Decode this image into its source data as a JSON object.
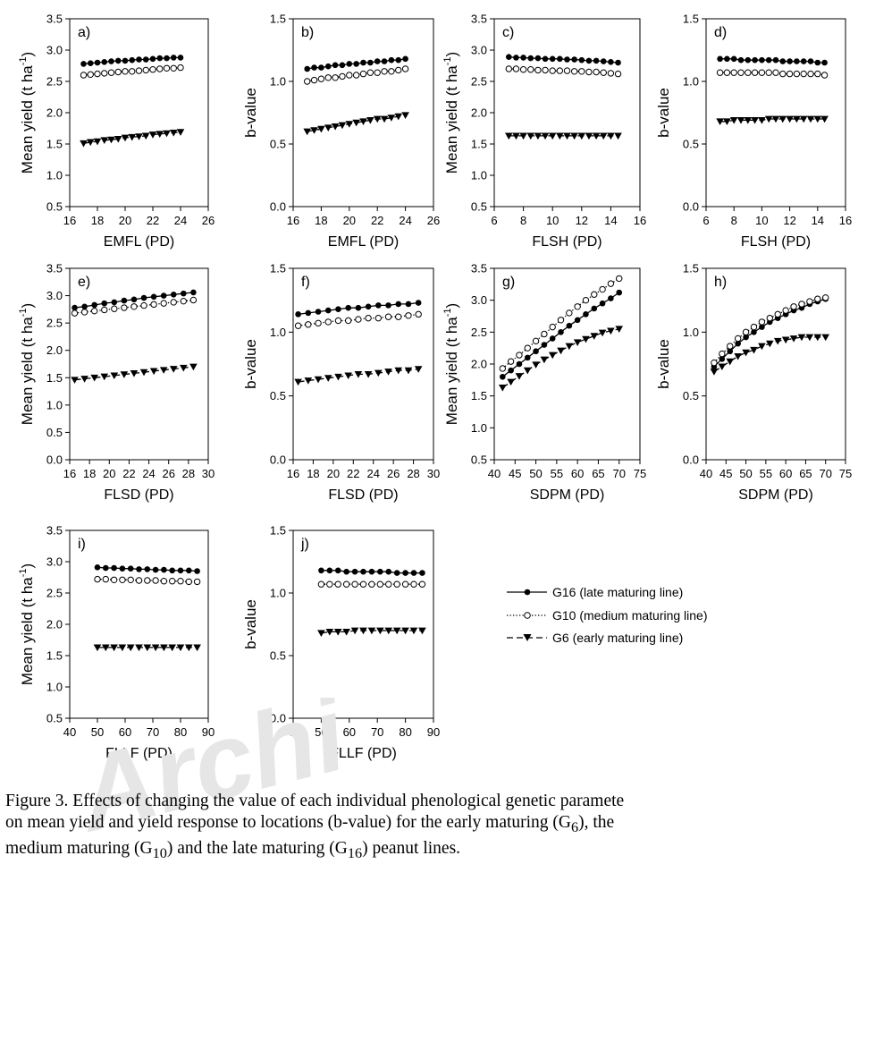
{
  "chart_data": [
    {
      "id": "a",
      "type": "line",
      "panel_label": "a)",
      "xlabel": "EMFL (PD)",
      "ylabel": "Mean yield (t ha-1)",
      "xlim": [
        16,
        26
      ],
      "ylim": [
        0.5,
        3.5
      ],
      "xticks": [
        16,
        18,
        20,
        22,
        24,
        26
      ],
      "yticks": [
        0.5,
        1.0,
        1.5,
        2.0,
        2.5,
        3.0,
        3.5
      ],
      "ytick_labels": [
        "0.5",
        "1.0",
        "1.5",
        "2.0",
        "2.5",
        "3.0",
        "3.5"
      ],
      "x": [
        17,
        17.5,
        18,
        18.5,
        19,
        19.5,
        20,
        20.5,
        21,
        21.5,
        22,
        22.5,
        23,
        23.5,
        24
      ],
      "series": [
        {
          "key": "G16",
          "values": [
            2.78,
            2.79,
            2.8,
            2.81,
            2.82,
            2.83,
            2.83,
            2.84,
            2.85,
            2.85,
            2.86,
            2.87,
            2.87,
            2.88,
            2.88
          ]
        },
        {
          "key": "G10",
          "values": [
            2.6,
            2.61,
            2.62,
            2.63,
            2.64,
            2.65,
            2.66,
            2.66,
            2.67,
            2.68,
            2.69,
            2.7,
            2.71,
            2.71,
            2.72
          ]
        },
        {
          "key": "G6",
          "values": [
            1.51,
            1.53,
            1.54,
            1.56,
            1.57,
            1.58,
            1.6,
            1.61,
            1.62,
            1.63,
            1.65,
            1.66,
            1.67,
            1.68,
            1.69
          ]
        }
      ]
    },
    {
      "id": "b",
      "type": "line",
      "panel_label": "b)",
      "xlabel": "EMFL (PD)",
      "ylabel": "b-value",
      "xlim": [
        16,
        26
      ],
      "ylim": [
        0,
        1.5
      ],
      "xticks": [
        16,
        18,
        20,
        22,
        24,
        26
      ],
      "yticks": [
        0,
        0.5,
        1.0,
        1.5
      ],
      "ytick_labels": [
        "0.0",
        "0.5",
        "1.0",
        "1.5"
      ],
      "x": [
        17,
        17.5,
        18,
        18.5,
        19,
        19.5,
        20,
        20.5,
        21,
        21.5,
        22,
        22.5,
        23,
        23.5,
        24
      ],
      "series": [
        {
          "key": "G16",
          "values": [
            1.1,
            1.11,
            1.11,
            1.12,
            1.13,
            1.13,
            1.14,
            1.14,
            1.15,
            1.15,
            1.16,
            1.16,
            1.17,
            1.17,
            1.18
          ]
        },
        {
          "key": "G10",
          "values": [
            1.0,
            1.01,
            1.02,
            1.03,
            1.03,
            1.04,
            1.05,
            1.05,
            1.06,
            1.07,
            1.07,
            1.08,
            1.08,
            1.09,
            1.1
          ]
        },
        {
          "key": "G6",
          "values": [
            0.6,
            0.61,
            0.62,
            0.63,
            0.64,
            0.65,
            0.66,
            0.67,
            0.68,
            0.69,
            0.7,
            0.7,
            0.71,
            0.72,
            0.73
          ]
        }
      ]
    },
    {
      "id": "c",
      "type": "line",
      "panel_label": "c)",
      "xlabel": "FLSH (PD)",
      "ylabel": "Mean yield (t ha-1)",
      "xlim": [
        6,
        16
      ],
      "ylim": [
        0.5,
        3.5
      ],
      "xticks": [
        6,
        8,
        10,
        12,
        14,
        16
      ],
      "yticks": [
        0.5,
        1.0,
        1.5,
        2.0,
        2.5,
        3.0,
        3.5
      ],
      "ytick_labels": [
        "0.5",
        "1.0",
        "1.5",
        "2.0",
        "2.5",
        "3.0",
        "3.5"
      ],
      "x": [
        7,
        7.5,
        8,
        8.5,
        9,
        9.5,
        10,
        10.5,
        11,
        11.5,
        12,
        12.5,
        13,
        13.5,
        14,
        14.5
      ],
      "series": [
        {
          "key": "G16",
          "values": [
            2.89,
            2.88,
            2.88,
            2.87,
            2.87,
            2.86,
            2.86,
            2.86,
            2.85,
            2.85,
            2.84,
            2.83,
            2.83,
            2.82,
            2.81,
            2.8
          ]
        },
        {
          "key": "G10",
          "values": [
            2.7,
            2.7,
            2.69,
            2.69,
            2.68,
            2.68,
            2.67,
            2.67,
            2.67,
            2.66,
            2.66,
            2.65,
            2.65,
            2.64,
            2.63,
            2.62
          ]
        },
        {
          "key": "G6",
          "values": [
            1.63,
            1.63,
            1.63,
            1.63,
            1.63,
            1.63,
            1.63,
            1.63,
            1.63,
            1.63,
            1.63,
            1.63,
            1.63,
            1.63,
            1.63,
            1.63
          ]
        }
      ]
    },
    {
      "id": "d",
      "type": "line",
      "panel_label": "d)",
      "xlabel": "FLSH (PD)",
      "ylabel": "b-value",
      "xlim": [
        6,
        16
      ],
      "ylim": [
        0,
        1.5
      ],
      "xticks": [
        6,
        8,
        10,
        12,
        14,
        16
      ],
      "yticks": [
        0,
        0.5,
        1.0,
        1.5
      ],
      "ytick_labels": [
        "0.0",
        "0.5",
        "1.0",
        "1.5"
      ],
      "x": [
        7,
        7.5,
        8,
        8.5,
        9,
        9.5,
        10,
        10.5,
        11,
        11.5,
        12,
        12.5,
        13,
        13.5,
        14,
        14.5
      ],
      "series": [
        {
          "key": "G16",
          "values": [
            1.18,
            1.18,
            1.18,
            1.17,
            1.17,
            1.17,
            1.17,
            1.17,
            1.17,
            1.16,
            1.16,
            1.16,
            1.16,
            1.16,
            1.15,
            1.15
          ]
        },
        {
          "key": "G10",
          "values": [
            1.07,
            1.07,
            1.07,
            1.07,
            1.07,
            1.07,
            1.07,
            1.07,
            1.07,
            1.06,
            1.06,
            1.06,
            1.06,
            1.06,
            1.06,
            1.05
          ]
        },
        {
          "key": "G6",
          "values": [
            0.68,
            0.68,
            0.69,
            0.69,
            0.69,
            0.69,
            0.69,
            0.7,
            0.7,
            0.7,
            0.7,
            0.7,
            0.7,
            0.7,
            0.7,
            0.7
          ]
        }
      ]
    },
    {
      "id": "e",
      "type": "line",
      "panel_label": "e)",
      "xlabel": "FLSD (PD)",
      "ylabel": "Mean yield (t ha-1)",
      "xlim": [
        16,
        30
      ],
      "ylim": [
        0,
        3.5
      ],
      "xticks": [
        16,
        18,
        20,
        22,
        24,
        26,
        28,
        30
      ],
      "yticks": [
        0,
        0.5,
        1.0,
        1.5,
        2.0,
        2.5,
        3.0,
        3.5
      ],
      "ytick_labels": [
        "0.0",
        "0.5",
        "1.0",
        "1.5",
        "2.0",
        "2.5",
        "3.0",
        "3.5"
      ],
      "x": [
        16.5,
        17.5,
        18.5,
        19.5,
        20.5,
        21.5,
        22.5,
        23.5,
        24.5,
        25.5,
        26.5,
        27.5,
        28.5
      ],
      "series": [
        {
          "key": "G16",
          "values": [
            2.78,
            2.8,
            2.83,
            2.86,
            2.88,
            2.91,
            2.93,
            2.96,
            2.98,
            3.0,
            3.02,
            3.04,
            3.06
          ]
        },
        {
          "key": "G10",
          "values": [
            2.68,
            2.7,
            2.72,
            2.74,
            2.76,
            2.78,
            2.8,
            2.82,
            2.84,
            2.86,
            2.88,
            2.9,
            2.92
          ]
        },
        {
          "key": "G6",
          "values": [
            1.46,
            1.48,
            1.5,
            1.52,
            1.54,
            1.56,
            1.58,
            1.6,
            1.62,
            1.64,
            1.66,
            1.68,
            1.7
          ]
        }
      ]
    },
    {
      "id": "f",
      "type": "line",
      "panel_label": "f)",
      "xlabel": "FLSD (PD)",
      "ylabel": "b-value",
      "xlim": [
        16,
        30
      ],
      "ylim": [
        0,
        1.5
      ],
      "xticks": [
        16,
        18,
        20,
        22,
        24,
        26,
        28,
        30
      ],
      "yticks": [
        0,
        0.5,
        1.0,
        1.5
      ],
      "ytick_labels": [
        "0.0",
        "0.5",
        "1.0",
        "1.5"
      ],
      "x": [
        16.5,
        17.5,
        18.5,
        19.5,
        20.5,
        21.5,
        22.5,
        23.5,
        24.5,
        25.5,
        26.5,
        27.5,
        28.5
      ],
      "series": [
        {
          "key": "G16",
          "values": [
            1.14,
            1.15,
            1.16,
            1.17,
            1.18,
            1.19,
            1.19,
            1.2,
            1.21,
            1.21,
            1.22,
            1.22,
            1.23
          ]
        },
        {
          "key": "G10",
          "values": [
            1.05,
            1.06,
            1.07,
            1.08,
            1.09,
            1.09,
            1.1,
            1.11,
            1.11,
            1.12,
            1.12,
            1.13,
            1.14
          ]
        },
        {
          "key": "G6",
          "values": [
            0.61,
            0.62,
            0.63,
            0.64,
            0.65,
            0.66,
            0.67,
            0.67,
            0.68,
            0.69,
            0.7,
            0.7,
            0.71
          ]
        }
      ]
    },
    {
      "id": "g",
      "type": "line",
      "panel_label": "g)",
      "xlabel": "SDPM (PD)",
      "ylabel": "Mean yield (t ha-1)",
      "xlim": [
        40,
        75
      ],
      "ylim": [
        0.5,
        3.5
      ],
      "xticks": [
        40,
        45,
        50,
        55,
        60,
        65,
        70,
        75
      ],
      "yticks": [
        0.5,
        1.0,
        1.5,
        2.0,
        2.5,
        3.0,
        3.5
      ],
      "ytick_labels": [
        "0.5",
        "1.0",
        "1.5",
        "2.0",
        "2.5",
        "3.0",
        "3.5"
      ],
      "x": [
        42,
        44,
        46,
        48,
        50,
        52,
        54,
        56,
        58,
        60,
        62,
        64,
        66,
        68,
        70
      ],
      "series": [
        {
          "key": "G16",
          "values": [
            1.8,
            1.9,
            2.0,
            2.1,
            2.2,
            2.3,
            2.4,
            2.5,
            2.6,
            2.69,
            2.78,
            2.87,
            2.95,
            3.03,
            3.12
          ]
        },
        {
          "key": "G10",
          "values": [
            1.93,
            2.04,
            2.14,
            2.25,
            2.36,
            2.47,
            2.58,
            2.69,
            2.8,
            2.9,
            3.0,
            3.09,
            3.17,
            3.26,
            3.34
          ]
        },
        {
          "key": "G6",
          "values": [
            1.63,
            1.72,
            1.81,
            1.9,
            1.99,
            2.07,
            2.14,
            2.21,
            2.28,
            2.34,
            2.39,
            2.44,
            2.49,
            2.52,
            2.55
          ]
        }
      ]
    },
    {
      "id": "h",
      "type": "line",
      "panel_label": "h)",
      "xlabel": "SDPM (PD)",
      "ylabel": "b-value",
      "xlim": [
        40,
        75
      ],
      "ylim": [
        0,
        1.5
      ],
      "xticks": [
        40,
        45,
        50,
        55,
        60,
        65,
        70,
        75
      ],
      "yticks": [
        0,
        0.5,
        1.0,
        1.5
      ],
      "ytick_labels": [
        "0.0",
        "0.5",
        "1.0",
        "1.5"
      ],
      "x": [
        42,
        44,
        46,
        48,
        50,
        52,
        54,
        56,
        58,
        60,
        62,
        64,
        66,
        68,
        70
      ],
      "series": [
        {
          "key": "G16",
          "values": [
            0.73,
            0.79,
            0.85,
            0.91,
            0.96,
            1.0,
            1.04,
            1.08,
            1.11,
            1.14,
            1.17,
            1.19,
            1.22,
            1.24,
            1.26
          ]
        },
        {
          "key": "G10",
          "values": [
            0.76,
            0.83,
            0.89,
            0.95,
            1.0,
            1.04,
            1.08,
            1.11,
            1.14,
            1.17,
            1.2,
            1.22,
            1.24,
            1.26,
            1.27
          ]
        },
        {
          "key": "G6",
          "values": [
            0.69,
            0.73,
            0.77,
            0.81,
            0.84,
            0.86,
            0.89,
            0.91,
            0.93,
            0.94,
            0.95,
            0.96,
            0.96,
            0.96,
            0.96
          ]
        }
      ]
    },
    {
      "id": "i",
      "type": "line",
      "panel_label": "i)",
      "xlabel": "FLLF (PD)",
      "ylabel": "Mean yield (t ha-1)",
      "xlim": [
        40,
        90
      ],
      "ylim": [
        0.5,
        3.5
      ],
      "xticks": [
        40,
        50,
        60,
        70,
        80,
        90
      ],
      "yticks": [
        0.5,
        1.0,
        1.5,
        2.0,
        2.5,
        3.0,
        3.5
      ],
      "ytick_labels": [
        "0.5",
        "1.0",
        "1.5",
        "2.0",
        "2.5",
        "3.0",
        "3.5"
      ],
      "x": [
        50,
        53,
        56,
        59,
        62,
        65,
        68,
        71,
        74,
        77,
        80,
        83,
        86
      ],
      "series": [
        {
          "key": "G16",
          "values": [
            2.91,
            2.9,
            2.9,
            2.89,
            2.89,
            2.88,
            2.88,
            2.87,
            2.87,
            2.86,
            2.86,
            2.86,
            2.85
          ]
        },
        {
          "key": "G10",
          "values": [
            2.72,
            2.72,
            2.71,
            2.71,
            2.71,
            2.7,
            2.7,
            2.7,
            2.69,
            2.69,
            2.69,
            2.68,
            2.68
          ]
        },
        {
          "key": "G6",
          "values": [
            1.63,
            1.63,
            1.63,
            1.63,
            1.63,
            1.63,
            1.63,
            1.63,
            1.63,
            1.63,
            1.63,
            1.63,
            1.63
          ]
        }
      ]
    },
    {
      "id": "j",
      "type": "line",
      "panel_label": "j)",
      "xlabel": "FLLF (PD)",
      "ylabel": "b-value",
      "xlim": [
        40,
        90
      ],
      "ylim": [
        0,
        1.5
      ],
      "xticks": [
        40,
        50,
        60,
        70,
        80,
        90
      ],
      "yticks": [
        0,
        0.5,
        1.0,
        1.5
      ],
      "ytick_labels": [
        "0.0",
        "0.5",
        "1.0",
        "1.5"
      ],
      "x": [
        50,
        53,
        56,
        59,
        62,
        65,
        68,
        71,
        74,
        77,
        80,
        83,
        86
      ],
      "series": [
        {
          "key": "G16",
          "values": [
            1.18,
            1.18,
            1.18,
            1.17,
            1.17,
            1.17,
            1.17,
            1.17,
            1.17,
            1.16,
            1.16,
            1.16,
            1.16
          ]
        },
        {
          "key": "G10",
          "values": [
            1.07,
            1.07,
            1.07,
            1.07,
            1.07,
            1.07,
            1.07,
            1.07,
            1.07,
            1.07,
            1.07,
            1.07,
            1.07
          ]
        },
        {
          "key": "G6",
          "values": [
            0.68,
            0.69,
            0.69,
            0.69,
            0.7,
            0.7,
            0.7,
            0.7,
            0.7,
            0.7,
            0.7,
            0.7,
            0.7
          ]
        }
      ]
    }
  ],
  "legend": {
    "entries": [
      {
        "key": "G16",
        "label": "G16 (late maturing line)"
      },
      {
        "key": "G10",
        "label": "G10 (medium maturing line)"
      },
      {
        "key": "G6",
        "label": "G6 (early maturing line)"
      }
    ]
  },
  "caption": {
    "p1": "Figure 3. Effects of changing the value of each individual phenological genetic paramete",
    "p2": "on mean yield and yield response to locations (b-value) for the early maturing (G",
    "s1": "6",
    "p3": "), the",
    "p4": "medium maturing (G",
    "s2": "10",
    "p5": ") and the late maturing (G",
    "s3": "16",
    "p6": ") peanut lines."
  },
  "watermark": {
    "text": "Archi"
  },
  "colors": {
    "ink": "#000000",
    "watermark": "#e6e6e6"
  }
}
